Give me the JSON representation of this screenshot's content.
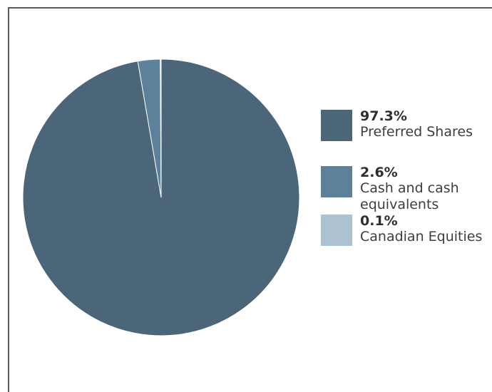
{
  "chart_data": {
    "type": "pie",
    "categories": [
      "Preferred Shares",
      "Cash and cash equivalents",
      "Canadian Equities"
    ],
    "values": [
      97.3,
      2.6,
      0.1
    ],
    "value_labels": [
      "97.3%",
      "2.6%",
      "0.1%"
    ],
    "colors": [
      "#4b6679",
      "#5e819b",
      "#adc2d0"
    ],
    "legend_placement": "right",
    "title": ""
  },
  "legend": {
    "items": [
      {
        "value": "97.3%",
        "label": "Preferred Shares"
      },
      {
        "value": "2.6%",
        "label": "Cash and cash\nequivalents"
      },
      {
        "value": "0.1%",
        "label": "Canadian Equities"
      }
    ]
  }
}
